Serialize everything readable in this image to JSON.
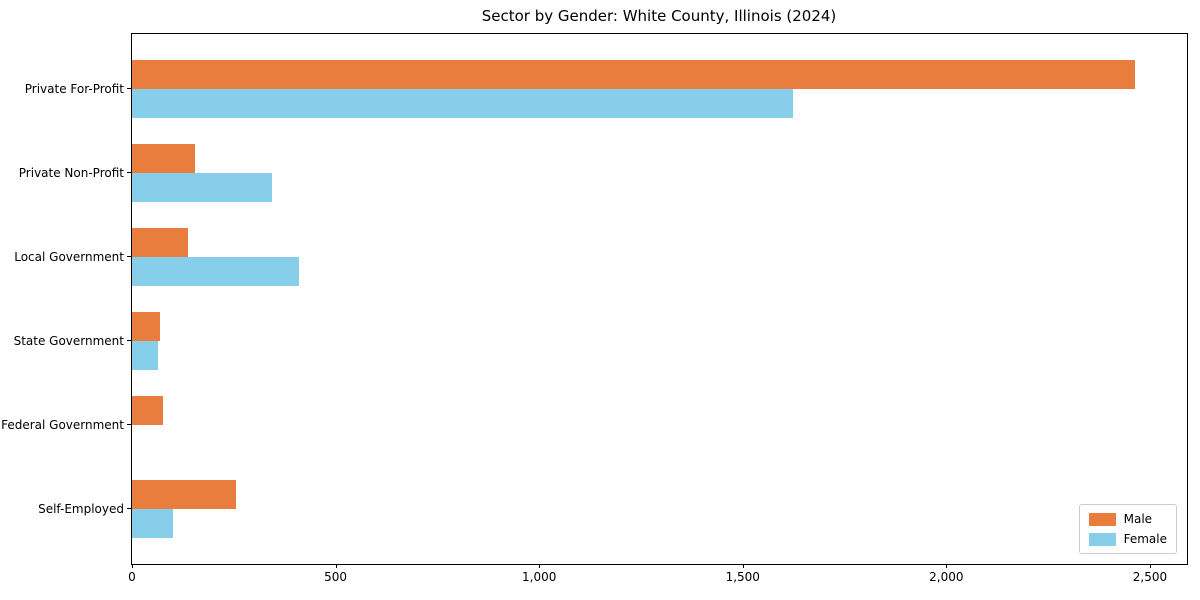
{
  "chart_data": {
    "type": "bar",
    "orientation": "horizontal",
    "title": "Sector by Gender: White County, Illinois (2024)",
    "categories": [
      "Private For-Profit",
      "Private Non-Profit",
      "Local Government",
      "State Government",
      "Federal Government",
      "Self-Employed"
    ],
    "series": [
      {
        "name": "Male",
        "color": "#e87d3d",
        "values": [
          2464,
          155,
          137,
          69,
          76,
          255
        ]
      },
      {
        "name": "Female",
        "color": "#87ceeb",
        "values": [
          1623,
          343,
          410,
          64,
          0,
          100
        ]
      }
    ],
    "xlabel": "",
    "ylabel": "",
    "xlim": [
      0,
      2591
    ],
    "xticks": [
      0,
      500,
      1000,
      1500,
      2000,
      2500
    ],
    "xticklabels": [
      "0",
      "500",
      "1,000",
      "1,500",
      "2,000",
      "2,500"
    ],
    "grid": false,
    "legend_position": "lower right",
    "background_color": "#ffffff",
    "spine_color": "#000000"
  }
}
